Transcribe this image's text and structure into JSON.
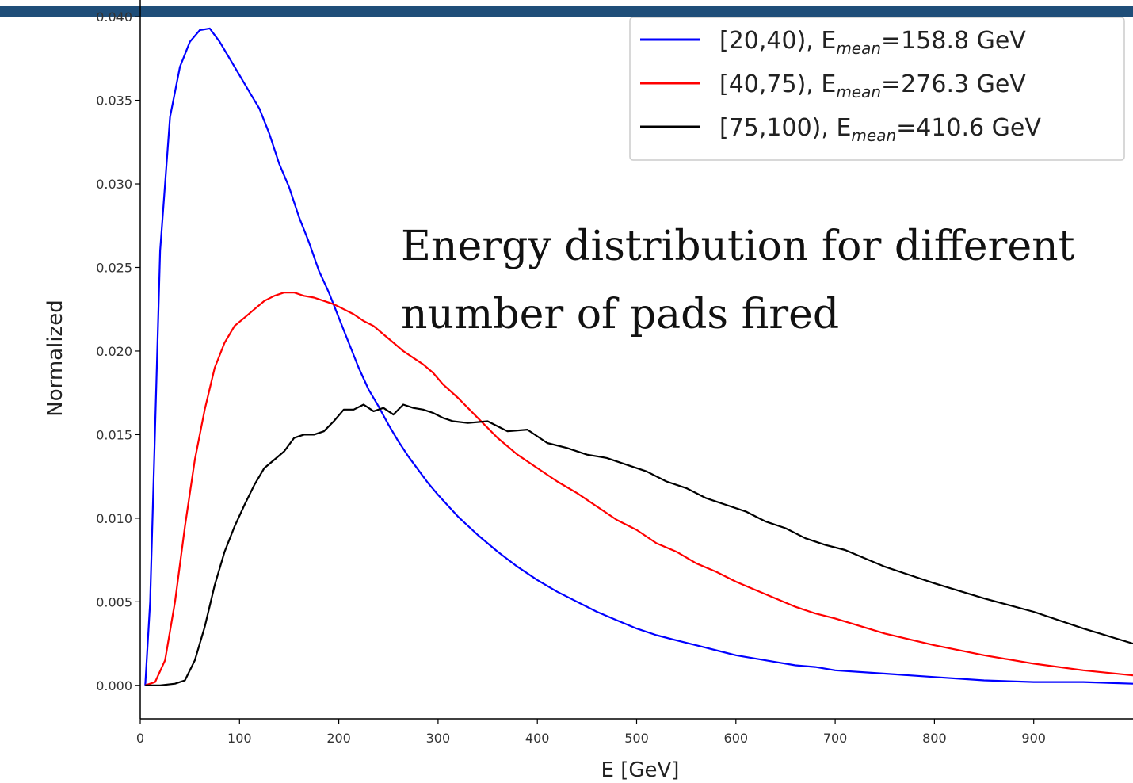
{
  "annotation": {
    "line1": "Energy distribution for different",
    "line2": "number of pads fired"
  },
  "colors": {
    "blue": "#0000ff",
    "red": "#ff0000",
    "black": "#000000",
    "band": "#1f4e79"
  },
  "chart_data": {
    "type": "line",
    "xlabel": "E [GeV]",
    "ylabel": "Normalized",
    "xlim": [
      0,
      1000
    ],
    "ylim": [
      -0.002,
      0.041
    ],
    "xticks": [
      0,
      100,
      200,
      300,
      400,
      500,
      600,
      700,
      800,
      900
    ],
    "yticks": [
      0.0,
      0.005,
      0.01,
      0.015,
      0.02,
      0.025,
      0.03,
      0.035,
      0.04
    ],
    "legend_position": "top-right",
    "series": [
      {
        "name": "[20,40), E",
        "sub": "mean",
        "tail": "=158.8 GeV",
        "color": "#0000ff",
        "x": [
          5,
          10,
          20,
          30,
          40,
          50,
          60,
          70,
          80,
          90,
          100,
          110,
          120,
          130,
          140,
          150,
          160,
          170,
          180,
          190,
          200,
          210,
          220,
          230,
          240,
          250,
          260,
          270,
          280,
          290,
          300,
          320,
          340,
          360,
          380,
          400,
          420,
          440,
          460,
          480,
          500,
          520,
          540,
          560,
          580,
          600,
          620,
          640,
          660,
          680,
          700,
          750,
          800,
          850,
          900,
          950,
          1000
        ],
        "y": [
          0.0,
          0.005,
          0.026,
          0.034,
          0.037,
          0.0385,
          0.0392,
          0.0393,
          0.0385,
          0.0375,
          0.0365,
          0.0355,
          0.0345,
          0.033,
          0.0312,
          0.0298,
          0.028,
          0.0265,
          0.0248,
          0.0235,
          0.022,
          0.0205,
          0.019,
          0.0177,
          0.0167,
          0.0156,
          0.0146,
          0.0137,
          0.0129,
          0.0121,
          0.0114,
          0.0101,
          0.009,
          0.008,
          0.0071,
          0.0063,
          0.0056,
          0.005,
          0.0044,
          0.0039,
          0.0034,
          0.003,
          0.0027,
          0.0024,
          0.0021,
          0.0018,
          0.0016,
          0.0014,
          0.0012,
          0.0011,
          0.0009,
          0.0007,
          0.0005,
          0.0003,
          0.0002,
          0.0002,
          0.0001
        ]
      },
      {
        "name": "[40,75), E",
        "sub": "mean",
        "tail": "=276.3 GeV",
        "color": "#ff0000",
        "x": [
          5,
          15,
          25,
          35,
          45,
          55,
          65,
          75,
          85,
          95,
          105,
          115,
          125,
          135,
          145,
          155,
          165,
          175,
          185,
          195,
          205,
          215,
          225,
          235,
          245,
          255,
          265,
          275,
          285,
          295,
          305,
          320,
          340,
          360,
          380,
          400,
          420,
          440,
          460,
          480,
          500,
          520,
          540,
          560,
          580,
          600,
          620,
          640,
          660,
          680,
          700,
          750,
          800,
          850,
          900,
          950,
          1000
        ],
        "y": [
          0.0,
          0.0002,
          0.0015,
          0.005,
          0.0095,
          0.0135,
          0.0165,
          0.019,
          0.0205,
          0.0215,
          0.022,
          0.0225,
          0.023,
          0.0233,
          0.0235,
          0.0235,
          0.0233,
          0.0232,
          0.023,
          0.0228,
          0.0225,
          0.0222,
          0.0218,
          0.0215,
          0.021,
          0.0205,
          0.02,
          0.0196,
          0.0192,
          0.0187,
          0.018,
          0.0172,
          0.016,
          0.0148,
          0.0138,
          0.013,
          0.0122,
          0.0115,
          0.0107,
          0.0099,
          0.0093,
          0.0085,
          0.008,
          0.0073,
          0.0068,
          0.0062,
          0.0057,
          0.0052,
          0.0047,
          0.0043,
          0.004,
          0.0031,
          0.0024,
          0.0018,
          0.0013,
          0.0009,
          0.0006
        ]
      },
      {
        "name": "[75,100), E",
        "sub": "mean",
        "tail": "=410.6 GeV",
        "color": "#000000",
        "x": [
          5,
          20,
          35,
          45,
          55,
          65,
          75,
          85,
          95,
          105,
          115,
          125,
          135,
          145,
          155,
          165,
          175,
          185,
          195,
          205,
          215,
          225,
          235,
          245,
          255,
          265,
          275,
          285,
          295,
          305,
          315,
          330,
          350,
          370,
          390,
          410,
          430,
          450,
          470,
          490,
          510,
          530,
          550,
          570,
          590,
          610,
          630,
          650,
          670,
          690,
          710,
          750,
          800,
          850,
          900,
          950,
          1000
        ],
        "y": [
          0.0,
          0.0,
          0.0001,
          0.0003,
          0.0015,
          0.0035,
          0.006,
          0.008,
          0.0095,
          0.0108,
          0.012,
          0.013,
          0.0135,
          0.014,
          0.0148,
          0.015,
          0.015,
          0.0152,
          0.0158,
          0.0165,
          0.0165,
          0.0168,
          0.0164,
          0.0166,
          0.0162,
          0.0168,
          0.0166,
          0.0165,
          0.0163,
          0.016,
          0.0158,
          0.0157,
          0.0158,
          0.0152,
          0.0153,
          0.0145,
          0.0142,
          0.0138,
          0.0136,
          0.0132,
          0.0128,
          0.0122,
          0.0118,
          0.0112,
          0.0108,
          0.0104,
          0.0098,
          0.0094,
          0.0088,
          0.0084,
          0.0081,
          0.0071,
          0.0061,
          0.0052,
          0.0044,
          0.0034,
          0.0025
        ]
      }
    ]
  }
}
